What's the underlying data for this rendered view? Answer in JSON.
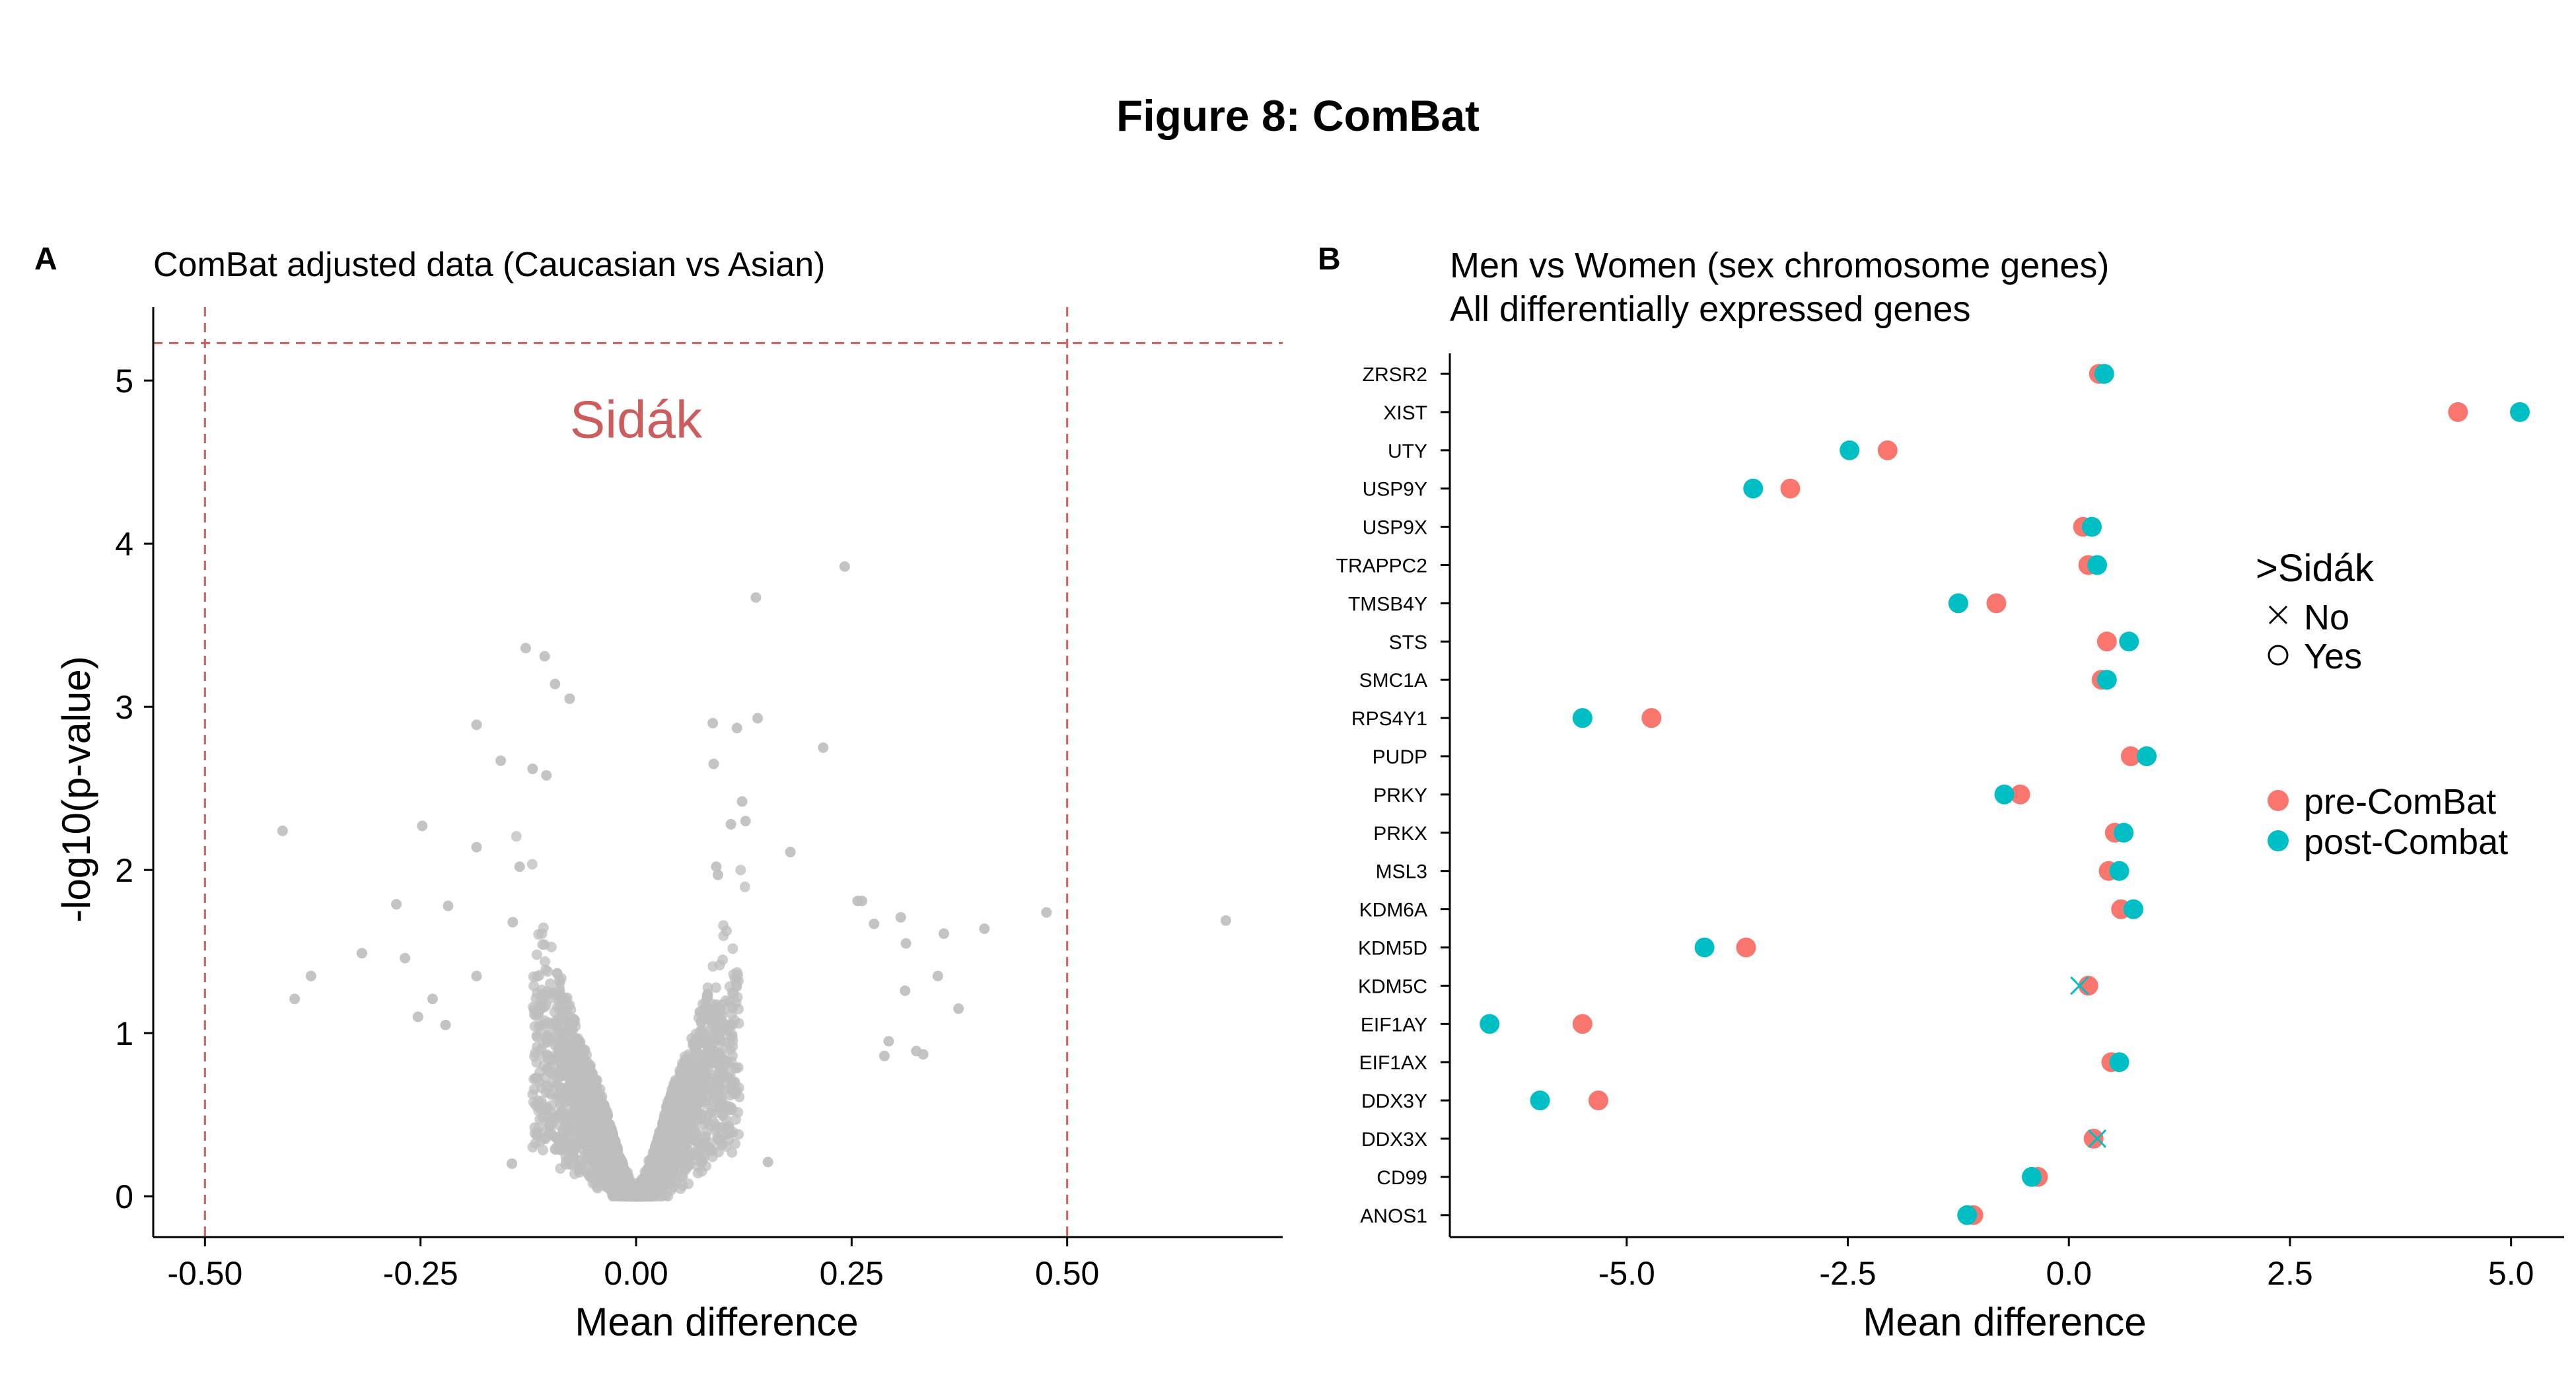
{
  "figure": {
    "title": "Figure 8: ComBat"
  },
  "colors": {
    "pre": "#F8766D",
    "post": "#00BFC4",
    "scatter": "#BEBEBE",
    "threshold": "#CD5C5C",
    "axis": "#000000"
  },
  "chart_data": [
    {
      "type": "scatter",
      "panel_label": "A",
      "title": "ComBat adjusted data (Caucasian vs Asian)",
      "xlabel": "Mean difference",
      "ylabel": "-log10(p-value)",
      "xlim": [
        -0.56,
        0.75
      ],
      "ylim": [
        -0.25,
        5.45
      ],
      "xticks": [
        -0.5,
        -0.25,
        0.0,
        0.25,
        0.5
      ],
      "xtick_labels": [
        "-0.50",
        "-0.25",
        "0.00",
        "0.25",
        "0.50"
      ],
      "yticks": [
        0,
        1,
        2,
        3,
        4,
        5
      ],
      "ytick_labels": [
        "0",
        "1",
        "2",
        "3",
        "4",
        "5"
      ],
      "thresholds": {
        "x": [
          -0.5,
          0.5
        ],
        "y": 5.23
      },
      "annotation": {
        "text": "Sidák",
        "x": 0.0,
        "y": 4.65
      },
      "points": [
        [
          0.242,
          3.86
        ],
        [
          0.139,
          3.67
        ],
        [
          -0.128,
          3.36
        ],
        [
          -0.106,
          3.31
        ],
        [
          -0.094,
          3.14
        ],
        [
          -0.077,
          3.05
        ],
        [
          0.141,
          2.93
        ],
        [
          0.089,
          2.9
        ],
        [
          0.117,
          2.87
        ],
        [
          -0.185,
          2.89
        ],
        [
          -0.41,
          2.24
        ],
        [
          0.217,
          2.75
        ],
        [
          0.09,
          2.65
        ],
        [
          -0.157,
          2.67
        ],
        [
          -0.12,
          2.62
        ],
        [
          -0.104,
          2.58
        ],
        [
          -0.278,
          1.79
        ],
        [
          -0.248,
          2.27
        ],
        [
          -0.185,
          2.14
        ],
        [
          0.123,
          2.42
        ],
        [
          0.127,
          2.3
        ],
        [
          0.179,
          2.11
        ],
        [
          0.11,
          2.28
        ],
        [
          -0.218,
          1.78
        ],
        [
          0.257,
          1.81
        ],
        [
          0.262,
          1.81
        ],
        [
          0.276,
          1.67
        ],
        [
          0.307,
          1.71
        ],
        [
          0.357,
          1.61
        ],
        [
          0.404,
          1.64
        ],
        [
          0.476,
          1.74
        ],
        [
          0.684,
          1.69
        ],
        [
          0.313,
          1.55
        ],
        [
          0.35,
          1.35
        ],
        [
          0.374,
          1.15
        ],
        [
          -0.396,
          1.21
        ],
        [
          -0.377,
          1.35
        ],
        [
          -0.318,
          1.49
        ],
        [
          -0.268,
          1.46
        ],
        [
          -0.253,
          1.1
        ],
        [
          -0.236,
          1.21
        ],
        [
          -0.221,
          1.05
        ],
        [
          -0.185,
          1.35
        ],
        [
          -0.143,
          1.68
        ],
        [
          0.312,
          1.26
        ],
        [
          0.288,
          0.86
        ],
        [
          0.325,
          0.89
        ],
        [
          0.333,
          0.87
        ],
        [
          0.293,
          0.95
        ],
        [
          -0.135,
          2.02
        ],
        [
          0.093,
          2.02
        ],
        [
          0.095,
          1.97
        ],
        [
          -0.144,
          0.2
        ],
        [
          0.153,
          0.21
        ]
      ]
    },
    {
      "type": "scatter",
      "panel_label": "B",
      "title": "Men vs Women (sex chromosome genes)",
      "subtitle": "All differentially expressed genes",
      "xlabel": "Mean difference",
      "xlim": [
        -7.0,
        5.6
      ],
      "xticks": [
        -5.0,
        -2.5,
        0.0,
        2.5,
        5.0
      ],
      "xtick_labels": [
        "-5.0",
        "-2.5",
        "0.0",
        "2.5",
        "5.0"
      ],
      "genes": [
        "ZRSR2",
        "XIST",
        "UTY",
        "USP9Y",
        "USP9X",
        "TRAPPC2",
        "TMSB4Y",
        "STS",
        "SMC1A",
        "RPS4Y1",
        "PUDP",
        "PRKY",
        "PRKX",
        "MSL3",
        "KDM6A",
        "KDM5D",
        "KDM5C",
        "EIF1AY",
        "EIF1AX",
        "DDX3Y",
        "DDX3X",
        "CD99",
        "ANOS1"
      ],
      "series": [
        {
          "name": "pre-ComBat",
          "values": [
            0.34,
            4.4,
            -2.05,
            -3.15,
            0.16,
            0.22,
            -0.82,
            0.43,
            0.37,
            -4.72,
            0.7,
            -0.55,
            0.52,
            0.45,
            0.59,
            -3.65,
            0.22,
            -5.5,
            0.48,
            -5.32,
            0.28,
            -0.35,
            -1.08
          ],
          "sidak": [
            "Yes",
            "Yes",
            "Yes",
            "Yes",
            "Yes",
            "Yes",
            "Yes",
            "Yes",
            "Yes",
            "Yes",
            "Yes",
            "Yes",
            "Yes",
            "Yes",
            "Yes",
            "Yes",
            "Yes",
            "Yes",
            "Yes",
            "Yes",
            "Yes",
            "Yes",
            "Yes"
          ]
        },
        {
          "name": "post-Combat",
          "values": [
            0.4,
            5.1,
            -2.48,
            -3.57,
            0.26,
            0.32,
            -1.25,
            0.68,
            0.43,
            -5.5,
            0.88,
            -0.73,
            0.62,
            0.57,
            0.73,
            -4.12,
            0.12,
            -6.55,
            0.57,
            -5.98,
            0.32,
            -0.42,
            -1.15
          ],
          "sidak": [
            "Yes",
            "Yes",
            "Yes",
            "Yes",
            "Yes",
            "Yes",
            "Yes",
            "Yes",
            "Yes",
            "Yes",
            "Yes",
            "Yes",
            "Yes",
            "Yes",
            "Yes",
            "Yes",
            "No",
            "Yes",
            "Yes",
            "Yes",
            "No",
            "Yes",
            "Yes"
          ]
        }
      ],
      "legend_shape": {
        "title": ">Sidák",
        "items": [
          "No",
          "Yes"
        ]
      },
      "legend_color": {
        "items": [
          "pre-ComBat",
          "post-Combat"
        ]
      }
    }
  ]
}
